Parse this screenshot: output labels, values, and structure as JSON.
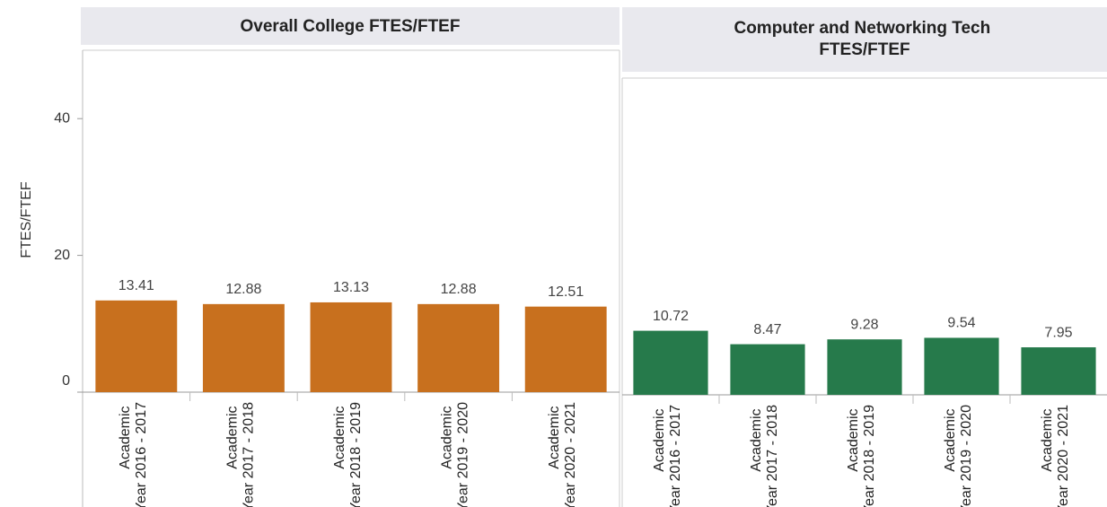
{
  "chart_data": [
    {
      "type": "bar",
      "title": "Overall College FTES/FTEF",
      "y_label": "FTES/FTEF",
      "categories": [
        "Academic Year 2016 - 2017",
        "Academic Year 2017 - 2018",
        "Academic Year 2018 - 2019",
        "Academic Year 2019 - 2020",
        "Academic Year 2020 - 2021"
      ],
      "values": [
        13.41,
        12.88,
        13.13,
        12.88,
        12.51
      ],
      "color": "#c8701e",
      "ylim": [
        0,
        50
      ],
      "yticks": [
        0,
        20,
        40
      ]
    },
    {
      "type": "bar",
      "title": "Computer and Networking Tech FTES/FTEF",
      "categories": [
        "Academic Year 2016 - 2017",
        "Academic Year 2017 - 2018",
        "Academic Year 2018 - 2019",
        "Academic Year 2019 - 2020",
        "Academic Year 2020 - 2021"
      ],
      "values": [
        10.72,
        8.47,
        9.28,
        9.54,
        7.95
      ],
      "color": "#267a4b",
      "ylim": [
        0,
        53
      ]
    }
  ]
}
